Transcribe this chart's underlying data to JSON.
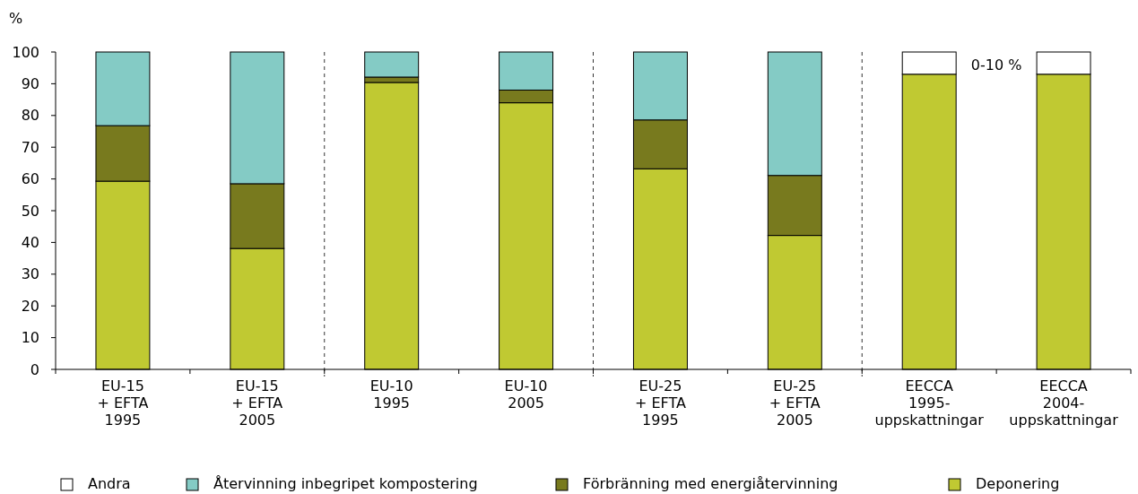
{
  "chart_data": {
    "type": "bar",
    "stacked": true,
    "ylabel": "%",
    "categories": [
      "EU-15\n+ EFTA\n1995",
      "EU-15\n+ EFTA\n2005",
      "EU-10\n1995",
      "EU-10\n2005",
      "EU-25\n+ EFTA\n1995",
      "EU-25\n+ EFTA\n2005",
      "EECCA\n1995-\nuppskattningar",
      "EECCA\n2004-\nuppskattningar"
    ],
    "series": [
      {
        "name": "Deponering",
        "color": "#c0c932",
        "values": [
          59.3,
          38.1,
          90.4,
          84,
          63.2,
          42.2,
          93,
          93
        ]
      },
      {
        "name": "Förbränning med energiåtervinning",
        "color": "#787a1e",
        "values": [
          17.5,
          20.4,
          1.7,
          4,
          15.4,
          18.9,
          null,
          null
        ]
      },
      {
        "name": "Återvinning inbegripet kompostering",
        "color": "#84cbc5",
        "values": [
          23.2,
          41.5,
          7.9,
          12,
          21.4,
          38.9,
          null,
          null
        ]
      },
      {
        "name": "Andra",
        "color": "#ffffff",
        "values": [
          null,
          null,
          null,
          null,
          null,
          null,
          7,
          7
        ]
      }
    ],
    "ylim": [
      0,
      100
    ],
    "yticks": [
      0,
      10,
      20,
      30,
      40,
      50,
      60,
      70,
      80,
      90,
      100
    ],
    "annotations": [
      "0-10 %"
    ],
    "legend": "bottom"
  }
}
